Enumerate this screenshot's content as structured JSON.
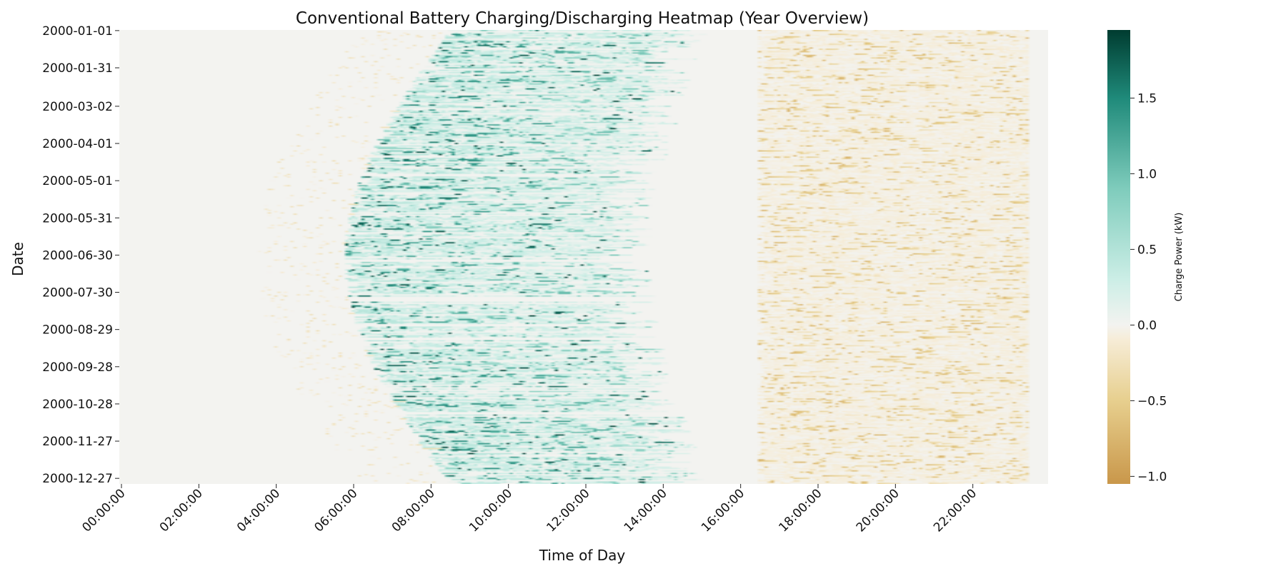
{
  "chart_data": {
    "type": "heatmap",
    "title": "Conventional Battery Charging/Discharging Heatmap (Year Overview)",
    "xlabel": "Time of Day",
    "ylabel": "Date",
    "x_tick_labels": [
      "00:00:00",
      "02:00:00",
      "04:00:00",
      "06:00:00",
      "08:00:00",
      "10:00:00",
      "12:00:00",
      "14:00:00",
      "16:00:00",
      "18:00:00",
      "20:00:00",
      "22:00:00"
    ],
    "x_tick_hours": [
      0,
      2,
      4,
      6,
      8,
      10,
      12,
      14,
      16,
      18,
      20,
      22
    ],
    "x_range_hours": [
      0,
      24
    ],
    "y_tick_labels": [
      "2000-01-01",
      "2000-01-31",
      "2000-03-02",
      "2000-04-01",
      "2000-05-01",
      "2000-05-31",
      "2000-06-30",
      "2000-07-30",
      "2000-08-29",
      "2000-09-28",
      "2000-10-28",
      "2000-11-27",
      "2000-12-27"
    ],
    "y_tick_days": [
      0,
      30,
      61,
      91,
      121,
      151,
      181,
      211,
      241,
      271,
      301,
      331,
      361
    ],
    "days": 366,
    "colorbar": {
      "label": "Charge Power (kW)",
      "min": -1.05,
      "max": 1.95,
      "tick_labels": [
        "1.5",
        "1.0",
        "0.5",
        "0.0",
        "−0.5",
        "−1.0"
      ],
      "tick_values": [
        1.5,
        1.0,
        0.5,
        0.0,
        -0.5,
        -1.0
      ],
      "stops": [
        {
          "v": -1.05,
          "color": "#c9974a"
        },
        {
          "v": -0.5,
          "color": "#e7cf8e"
        },
        {
          "v": -0.1,
          "color": "#f6ecd6"
        },
        {
          "v": 0.0,
          "color": "#f3f3f0"
        },
        {
          "v": 0.3,
          "color": "#cceee6"
        },
        {
          "v": 0.9,
          "color": "#7fccbc"
        },
        {
          "v": 1.5,
          "color": "#1f8a7a"
        },
        {
          "v": 1.95,
          "color": "#003c30"
        }
      ]
    },
    "description_values": {
      "night_hours_value_kW": 0.0,
      "typical_daytime_charge_kW": [
        0.5,
        1.0
      ],
      "peak_charge_kW": 1.95,
      "evening_discharge_kW": [
        -0.1,
        -0.6
      ],
      "min_discharge_kW": -1.05
    }
  }
}
